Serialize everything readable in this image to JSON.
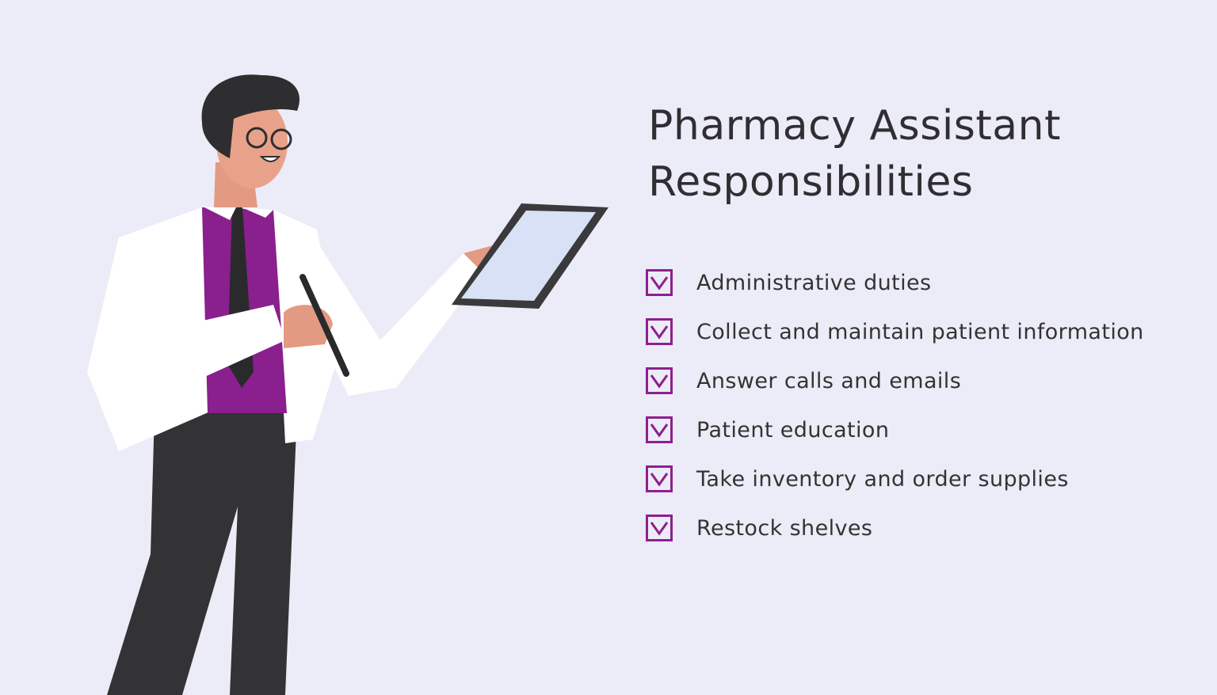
{
  "title_line1": "Pharmacy Assistant",
  "title_line2": "Responsibilities",
  "accent_color": "#8e1f8f",
  "background_color": "#ececf8",
  "items": [
    {
      "label": "Administrative duties",
      "checked": true
    },
    {
      "label": "Collect and maintain patient information",
      "checked": true
    },
    {
      "label": "Answer calls and emails",
      "checked": true
    },
    {
      "label": "Patient education",
      "checked": true
    },
    {
      "label": "Take inventory and order supplies",
      "checked": true
    },
    {
      "label": "Restock shelves",
      "checked": true
    }
  ]
}
